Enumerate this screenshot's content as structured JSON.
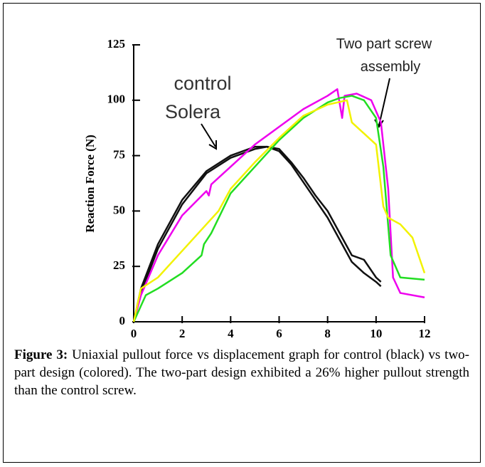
{
  "chart_data": {
    "type": "line",
    "y_label": "Reaction Force (N)",
    "annotations": [
      "control",
      "Solera",
      "Two part screw",
      "assembly"
    ],
    "caption_label": "Figure 3:",
    "caption": "Uniaxial pullout force vs displacement graph for control (black) vs two-part design (colored). The two-part design exhibited a 26% higher pullout strength than the control screw.",
    "xlim": [
      0,
      12
    ],
    "xticks": [
      0,
      2,
      4,
      6,
      8,
      10,
      12
    ],
    "ylim": [
      0,
      125
    ],
    "yticks": [
      0,
      25,
      50,
      75,
      100,
      125
    ],
    "series": [
      {
        "color": "#111111",
        "x": [
          0,
          0.3,
          1,
          2,
          3,
          4,
          4.5,
          5,
          5.5,
          6,
          6.5,
          7,
          7.5,
          8,
          8.5,
          9,
          9.5,
          10,
          10.2
        ],
        "values": [
          0,
          15,
          35,
          55,
          68,
          75,
          77,
          79,
          79,
          78,
          72,
          65,
          57,
          50,
          40,
          30,
          28,
          20,
          18
        ]
      },
      {
        "color": "#111111",
        "x": [
          0,
          0.3,
          1,
          2,
          3,
          4,
          5,
          5.5,
          6,
          6.5,
          7,
          7.5,
          8,
          8.5,
          9,
          9.5,
          10,
          10.2
        ],
        "values": [
          0,
          13,
          33,
          53,
          67,
          74,
          78,
          79,
          77,
          71,
          63,
          55,
          47,
          37,
          27,
          22,
          18,
          16
        ]
      },
      {
        "color": "#ee00ee",
        "x": [
          0,
          0.3,
          1,
          2,
          3,
          3.1,
          3.2,
          4,
          5,
          6,
          7,
          8,
          8.4,
          8.6,
          8.7,
          9.2,
          9.8,
          10.2,
          10.5,
          10.7,
          11,
          12
        ],
        "values": [
          0,
          12,
          30,
          48,
          59,
          57,
          62,
          70,
          80,
          88,
          96,
          102,
          105,
          92,
          102,
          103,
          100,
          90,
          60,
          20,
          13,
          11
        ]
      },
      {
        "color": "#22dd22",
        "x": [
          0,
          0.5,
          1,
          2,
          2.8,
          2.9,
          3.2,
          4,
          5,
          6,
          7,
          8,
          8.5,
          9,
          9.5,
          10,
          10.3,
          10.6,
          11,
          12
        ],
        "values": [
          0,
          12,
          15,
          22,
          30,
          35,
          40,
          58,
          70,
          82,
          92,
          99,
          101,
          102,
          100,
          92,
          70,
          30,
          20,
          19
        ]
      },
      {
        "color": "#f2f200",
        "x": [
          0,
          0.3,
          1,
          2,
          3,
          3.5,
          4,
          5,
          6,
          7,
          8,
          8.8,
          9,
          9.5,
          10,
          10.3,
          10.5,
          11,
          11.5,
          12
        ],
        "values": [
          0,
          15,
          20,
          32,
          44,
          50,
          60,
          72,
          83,
          93,
          98,
          100,
          90,
          85,
          80,
          52,
          47,
          44,
          38,
          22
        ]
      }
    ]
  }
}
